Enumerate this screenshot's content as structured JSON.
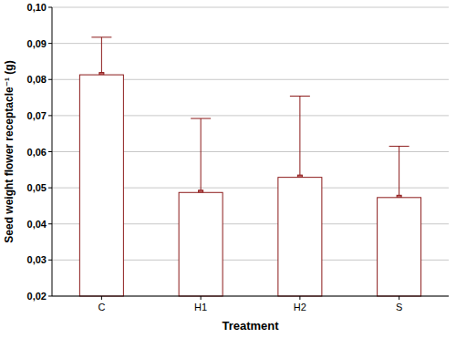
{
  "chart_data": {
    "type": "bar",
    "x_label": "Treatment",
    "y_label": "Seed weight flower receptacle⁻¹ (g)",
    "categories": [
      "C",
      "H1",
      "H2",
      "S"
    ],
    "values": [
      0.0813,
      0.0487,
      0.0529,
      0.0473
    ],
    "errors": [
      0.0104,
      0.0205,
      0.0225,
      0.0142
    ],
    "color": "#8b1a1a",
    "ylim": [
      0.02,
      0.1
    ],
    "yticks": [
      {
        "value": 0.02,
        "label": "0,02"
      },
      {
        "value": 0.03,
        "label": "0,03"
      },
      {
        "value": 0.04,
        "label": "0,04"
      },
      {
        "value": 0.05,
        "label": "0,05"
      },
      {
        "value": 0.06,
        "label": "0,06"
      },
      {
        "value": 0.07,
        "label": "0,07"
      },
      {
        "value": 0.08,
        "label": "0,08"
      },
      {
        "value": 0.09,
        "label": "0,09"
      },
      {
        "value": 0.1,
        "label": "0,10"
      }
    ],
    "grid": true
  }
}
